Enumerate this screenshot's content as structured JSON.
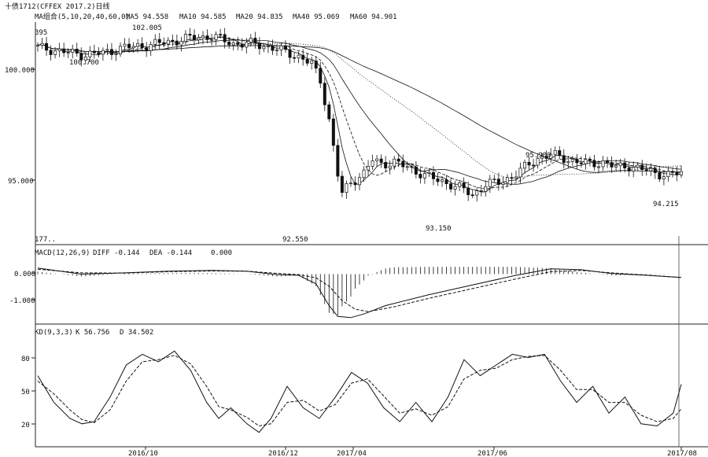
{
  "header": {
    "instrument_title": "十债1712(CFFEX 2017.2)日线",
    "ma_group_label": "MA组合(5,10,20,40,60,0)",
    "ma5_label": "MA5 94.558",
    "ma10_label": "MA10 94.585",
    "ma20_label": "MA20 94.835",
    "ma40_label": "MA40 95.069",
    "ma60_label": "MA60 94.901"
  },
  "colors": {
    "ink": "#111111",
    "background": "#ffffff",
    "grid": "#222222"
  },
  "chart_data": [
    {
      "type": "candlestick",
      "panel": "price",
      "y_ticks": [
        "100.000",
        "95.000"
      ],
      "ylim": [
        91.2,
        102.6
      ],
      "annotations": [
        {
          "text": "395"
        },
        {
          "text": "102.005"
        },
        {
          "text": "100.700"
        },
        {
          "text": "95.900"
        },
        {
          "text": "93.150"
        },
        {
          "text": "94.215"
        },
        {
          "text": "92.550"
        },
        {
          "text": "177.."
        }
      ],
      "moving_averages": [
        "MA5",
        "MA10",
        "MA20",
        "MA40",
        "MA60"
      ],
      "close_path": [
        [
          0,
          101.4
        ],
        [
          5,
          101.2
        ],
        [
          10,
          101.0
        ],
        [
          15,
          101.1
        ],
        [
          20,
          101.4
        ],
        [
          25,
          101.5
        ],
        [
          30,
          101.7
        ],
        [
          35,
          101.9
        ],
        [
          40,
          102.0
        ],
        [
          45,
          101.6
        ],
        [
          50,
          101.6
        ],
        [
          55,
          101.3
        ],
        [
          60,
          100.9
        ],
        [
          63,
          100.5
        ],
        [
          65,
          99.6
        ],
        [
          67,
          97.5
        ],
        [
          69,
          94.5
        ],
        [
          70,
          93.5
        ],
        [
          72,
          94.1
        ],
        [
          75,
          94.6
        ],
        [
          77,
          95.3
        ],
        [
          79,
          95.1
        ],
        [
          82,
          95.2
        ],
        [
          85,
          94.9
        ],
        [
          88,
          94.6
        ],
        [
          92,
          94.2
        ],
        [
          95,
          94.0
        ],
        [
          98,
          93.7
        ],
        [
          100,
          93.4
        ],
        [
          103,
          94.0
        ],
        [
          106,
          94.1
        ],
        [
          109,
          94.4
        ],
        [
          112,
          94.9
        ],
        [
          115,
          95.4
        ],
        [
          118,
          95.6
        ],
        [
          121,
          95.4
        ],
        [
          124,
          95.2
        ],
        [
          127,
          95.1
        ],
        [
          130,
          95.2
        ],
        [
          133,
          94.9
        ],
        [
          136,
          95.0
        ],
        [
          139,
          94.8
        ],
        [
          142,
          94.6
        ],
        [
          145,
          94.5
        ],
        [
          148,
          94.6
        ]
      ]
    },
    {
      "type": "line",
      "panel": "macd",
      "title": "MACD(12,26,9)",
      "legend": [
        "DIFF -0.144",
        "DEA -0.144",
        "0.000"
      ],
      "y_ticks": [
        "0.000",
        "-1.000"
      ],
      "ylim": [
        -2.0,
        0.6
      ],
      "series": [
        {
          "name": "DIFF",
          "points": [
            [
              0,
              0.25
            ],
            [
              10,
              0.0
            ],
            [
              20,
              0.05
            ],
            [
              30,
              0.12
            ],
            [
              40,
              0.15
            ],
            [
              48,
              0.12
            ],
            [
              55,
              -0.02
            ],
            [
              60,
              -0.05
            ],
            [
              64,
              -0.4
            ],
            [
              67,
              -1.3
            ],
            [
              69,
              -1.75
            ],
            [
              72,
              -1.8
            ],
            [
              75,
              -1.65
            ],
            [
              80,
              -1.3
            ],
            [
              90,
              -0.85
            ],
            [
              100,
              -0.45
            ],
            [
              110,
              -0.05
            ],
            [
              118,
              0.22
            ],
            [
              125,
              0.18
            ],
            [
              132,
              0.02
            ],
            [
              140,
              -0.05
            ],
            [
              148,
              -0.14
            ]
          ]
        },
        {
          "name": "DEA",
          "points": [
            [
              0,
              0.2
            ],
            [
              10,
              0.05
            ],
            [
              20,
              0.04
            ],
            [
              30,
              0.1
            ],
            [
              40,
              0.13
            ],
            [
              48,
              0.12
            ],
            [
              55,
              0.03
            ],
            [
              60,
              -0.02
            ],
            [
              64,
              -0.15
            ],
            [
              67,
              -0.5
            ],
            [
              70,
              -1.1
            ],
            [
              73,
              -1.45
            ],
            [
              76,
              -1.55
            ],
            [
              82,
              -1.35
            ],
            [
              90,
              -1.0
            ],
            [
              100,
              -0.6
            ],
            [
              110,
              -0.2
            ],
            [
              118,
              0.1
            ],
            [
              125,
              0.15
            ],
            [
              132,
              0.05
            ],
            [
              140,
              -0.04
            ],
            [
              148,
              -0.14
            ]
          ]
        }
      ]
    },
    {
      "type": "line",
      "panel": "kd",
      "title": "KD(9,3,3)",
      "legend": [
        "K 56.756",
        "D 34.502"
      ],
      "y_ticks": [
        "80",
        "50",
        "20"
      ],
      "ylim": [
        0,
        100
      ],
      "series": [
        {
          "name": "K",
          "points": [
            [
              0,
              65
            ],
            [
              4,
              40
            ],
            [
              8,
              25
            ],
            [
              11,
              20
            ],
            [
              14,
              22
            ],
            [
              18,
              45
            ],
            [
              22,
              75
            ],
            [
              26,
              85
            ],
            [
              30,
              78
            ],
            [
              34,
              88
            ],
            [
              38,
              70
            ],
            [
              42,
              40
            ],
            [
              45,
              25
            ],
            [
              48,
              35
            ],
            [
              52,
              20
            ],
            [
              55,
              12
            ],
            [
              58,
              25
            ],
            [
              62,
              55
            ],
            [
              66,
              35
            ],
            [
              70,
              25
            ],
            [
              74,
              45
            ],
            [
              78,
              68
            ],
            [
              82,
              58
            ],
            [
              86,
              35
            ],
            [
              90,
              22
            ],
            [
              94,
              40
            ],
            [
              98,
              22
            ],
            [
              102,
              45
            ],
            [
              106,
              80
            ],
            [
              110,
              65
            ],
            [
              114,
              75
            ],
            [
              118,
              85
            ],
            [
              122,
              82
            ],
            [
              126,
              85
            ],
            [
              130,
              60
            ],
            [
              134,
              40
            ],
            [
              138,
              55
            ],
            [
              142,
              30
            ],
            [
              146,
              45
            ],
            [
              150,
              20
            ],
            [
              154,
              18
            ],
            [
              158,
              30
            ],
            [
              160,
              57
            ]
          ]
        },
        {
          "name": "D",
          "points": [
            [
              0,
              60
            ],
            [
              4,
              48
            ],
            [
              8,
              33
            ],
            [
              11,
              24
            ],
            [
              14,
              21
            ],
            [
              18,
              33
            ],
            [
              22,
              60
            ],
            [
              26,
              78
            ],
            [
              30,
              80
            ],
            [
              34,
              84
            ],
            [
              38,
              76
            ],
            [
              42,
              55
            ],
            [
              45,
              36
            ],
            [
              48,
              33
            ],
            [
              52,
              26
            ],
            [
              55,
              18
            ],
            [
              58,
              20
            ],
            [
              62,
              40
            ],
            [
              66,
              42
            ],
            [
              70,
              32
            ],
            [
              74,
              38
            ],
            [
              78,
              58
            ],
            [
              82,
              62
            ],
            [
              86,
              46
            ],
            [
              90,
              30
            ],
            [
              94,
              34
            ],
            [
              98,
              28
            ],
            [
              102,
              36
            ],
            [
              106,
              62
            ],
            [
              110,
              70
            ],
            [
              114,
              72
            ],
            [
              118,
              80
            ],
            [
              122,
              83
            ],
            [
              126,
              84
            ],
            [
              130,
              70
            ],
            [
              134,
              52
            ],
            [
              138,
              52
            ],
            [
              142,
              40
            ],
            [
              146,
              40
            ],
            [
              150,
              28
            ],
            [
              154,
              22
            ],
            [
              158,
              25
            ],
            [
              160,
              34
            ]
          ]
        }
      ]
    }
  ],
  "x_axis": {
    "labels": [
      "2016/10",
      "2016/12",
      "2017/04",
      "2017/06",
      "2017/08"
    ]
  }
}
